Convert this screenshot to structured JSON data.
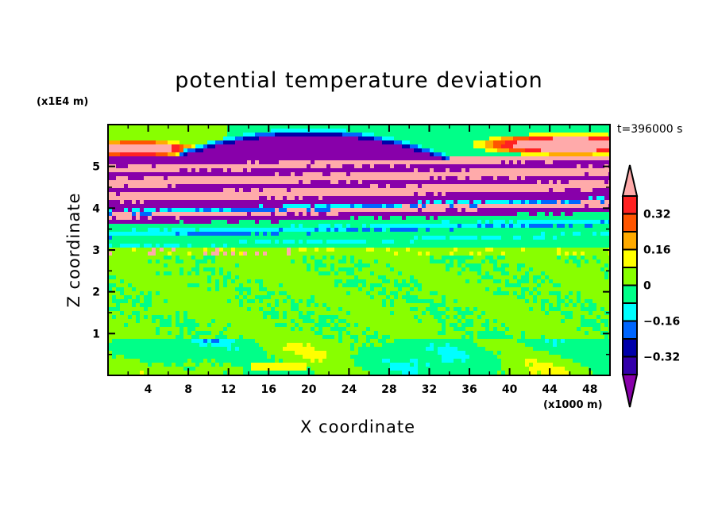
{
  "chart_data": {
    "type": "heatmap",
    "title": "potential temperature deviation",
    "xlabel": "X coordinate",
    "ylabel": "Z coordinate",
    "x_unit": "(x1000 m)",
    "y_unit": "(x1E4 m)",
    "annotation": "t=396000 s",
    "xlim": [
      0,
      50
    ],
    "ylim": [
      0,
      6
    ],
    "x_ticks": [
      4,
      8,
      12,
      16,
      20,
      24,
      28,
      32,
      36,
      40,
      44,
      48
    ],
    "x_tick_labels": [
      "4",
      "8",
      "12",
      "16",
      "20",
      "24",
      "28",
      "32",
      "36",
      "40",
      "44",
      "48"
    ],
    "y_ticks": [
      1,
      2,
      3,
      4,
      5
    ],
    "y_tick_labels": [
      "1",
      "2",
      "3",
      "4",
      "5"
    ],
    "colorbar": {
      "levels": [
        -0.4,
        -0.32,
        -0.24,
        -0.16,
        -0.08,
        0,
        0.08,
        0.16,
        0.24,
        0.32,
        0.4
      ],
      "colors": [
        "#8800aa",
        "#3300aa",
        "#0000aa",
        "#0066ff",
        "#00ffff",
        "#00ff88",
        "#88ff00",
        "#ffff00",
        "#ffaa00",
        "#ff5500",
        "#ff2222",
        "#ffaaaa"
      ],
      "labels": [
        {
          "level": 0.32,
          "text": "0.32"
        },
        {
          "level": 0.16,
          "text": "0.16"
        },
        {
          "level": 0,
          "text": "0"
        },
        {
          "level": -0.16,
          "text": "−0.16"
        },
        {
          "level": -0.32,
          "text": "−0.32"
        }
      ],
      "extend": "both"
    },
    "upper_bands": [
      [
        3.05,
        4
      ],
      [
        3.1,
        5
      ],
      [
        3.3,
        3
      ],
      [
        3.35,
        4
      ],
      [
        3.45,
        5
      ],
      [
        3.6,
        0
      ],
      [
        3.75,
        11
      ],
      [
        3.85,
        3
      ],
      [
        3.9,
        4
      ],
      [
        3.95,
        0
      ],
      [
        4.15,
        11
      ],
      [
        4.35,
        0
      ],
      [
        4.5,
        11
      ],
      [
        4.7,
        0
      ],
      [
        4.85,
        11
      ],
      [
        5.0,
        0
      ],
      [
        5.1,
        11
      ],
      [
        5.2,
        0
      ]
    ]
  }
}
